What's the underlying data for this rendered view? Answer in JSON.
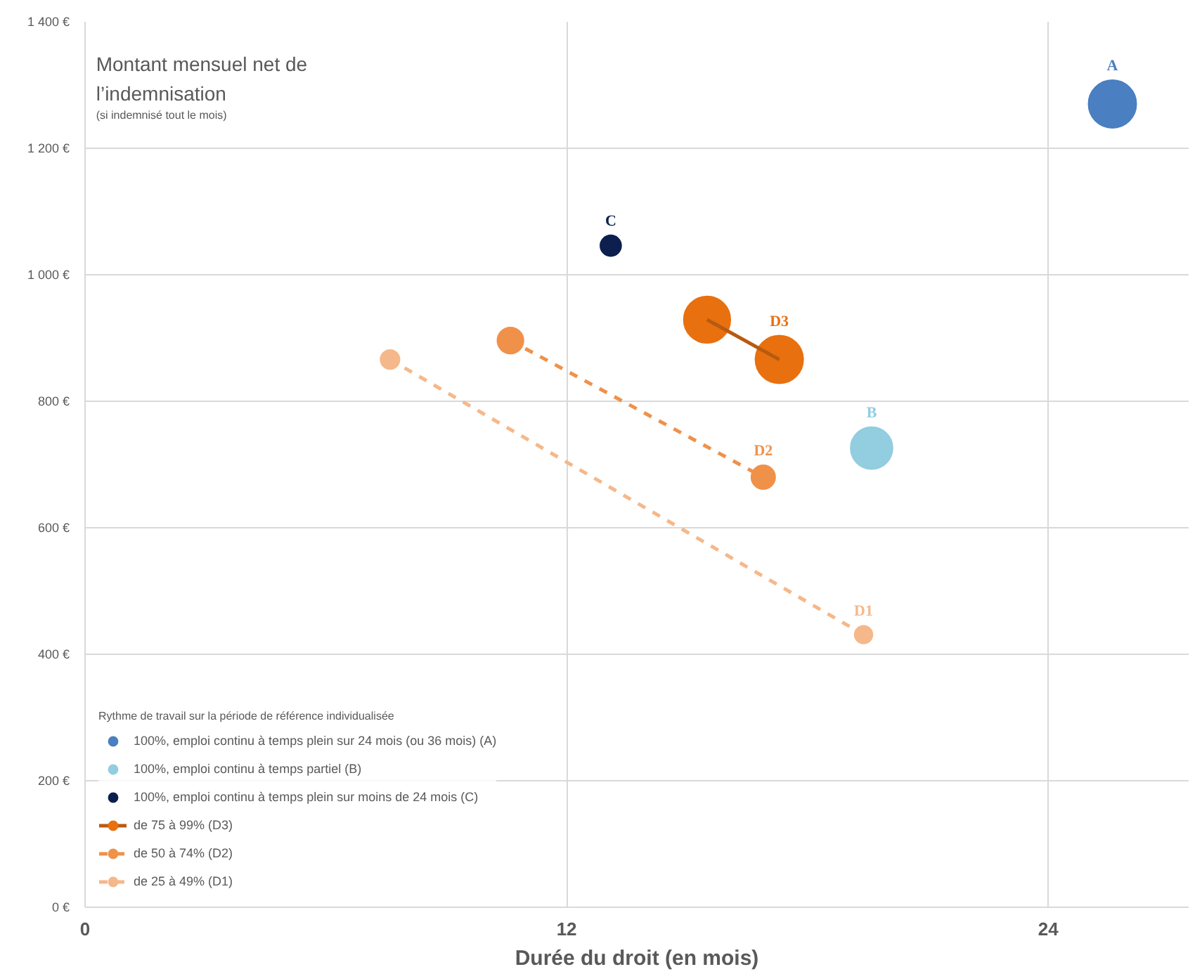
{
  "chart_data": {
    "type": "bubble",
    "ylabel": "Montant mensuel net de l’indemnisation",
    "xlabel": "Durée du droit (en mois)",
    "annotations": [
      "(si indemnisé tout le mois)"
    ],
    "legend_title": "Rythme de travail sur la période de référence individualisée",
    "legend": "bottom left",
    "grid": true,
    "xlim": [
      0,
      27.5
    ],
    "xticks": [
      0,
      12,
      24
    ],
    "ylim": [
      0,
      1400
    ],
    "yticks": [
      {
        "value": 0,
        "label": "0 €"
      },
      {
        "value": 200,
        "label": "200 €"
      },
      {
        "value": 400,
        "label": "400 €"
      },
      {
        "value": 600,
        "label": "600 €"
      },
      {
        "value": 800,
        "label": "800 €"
      },
      {
        "value": 1000,
        "label": "1 000 €"
      },
      {
        "value": 1200,
        "label": "1 200 €"
      },
      {
        "value": 1400,
        "label": "1 400 €"
      }
    ],
    "series": [
      {
        "name": "100%, emploi continu à temps plein sur 24 mois (ou 36 mois) (A)",
        "color": "#4a7fc1",
        "x": [
          25.6
        ],
        "values": [
          1270
        ],
        "sizes": [
          1
        ],
        "value_labels": [
          "A"
        ]
      },
      {
        "name": "100%, emploi continu à temps partiel (B)",
        "color": "#92cde0",
        "x": [
          19.6
        ],
        "values": [
          726
        ],
        "sizes": [
          0.77
        ],
        "value_labels": [
          "B"
        ]
      },
      {
        "name": "100%, emploi continu à temps plein sur moins de 24 mois (C)",
        "color": "#0d1f4f",
        "x": [
          13.1
        ],
        "values": [
          1046
        ],
        "sizes": [
          0.19
        ],
        "value_labels": [
          "C"
        ]
      },
      {
        "type": "line",
        "color": "#b85a10",
        "x": [
          15.5,
          17.3
        ],
        "values": [
          929,
          866
        ],
        "line_style": "solid"
      },
      {
        "type": "line",
        "color": "#f0914a",
        "x": [
          10.6,
          16.9
        ],
        "values": [
          896,
          680
        ],
        "line_style": "dashed"
      },
      {
        "type": "line",
        "color": "#f5b88a",
        "x": [
          7.6,
          19.4
        ],
        "values": [
          866,
          431
        ],
        "line_style": "dashed"
      },
      {
        "name": "de 75 à 99% (D3)",
        "color": "#e8700f",
        "x": [
          15.5,
          17.3
        ],
        "values": [
          929,
          866
        ],
        "sizes": [
          0.95,
          1
        ],
        "value_labels": [
          null,
          "D3"
        ]
      },
      {
        "name": "de 50 à 74% (D2)",
        "color": "#f0914a",
        "x": [
          10.6,
          16.9
        ],
        "values": [
          896,
          680
        ],
        "sizes": [
          0.3,
          0.25
        ],
        "value_labels": [
          null,
          "D2"
        ]
      },
      {
        "name": "de 25 à 49% (D1)",
        "color": "#f5b88a",
        "x": [
          7.6,
          19.4
        ],
        "values": [
          866,
          431
        ],
        "sizes": [
          0.16,
          0.14
        ],
        "value_labels": [
          null,
          "D1"
        ]
      }
    ]
  }
}
